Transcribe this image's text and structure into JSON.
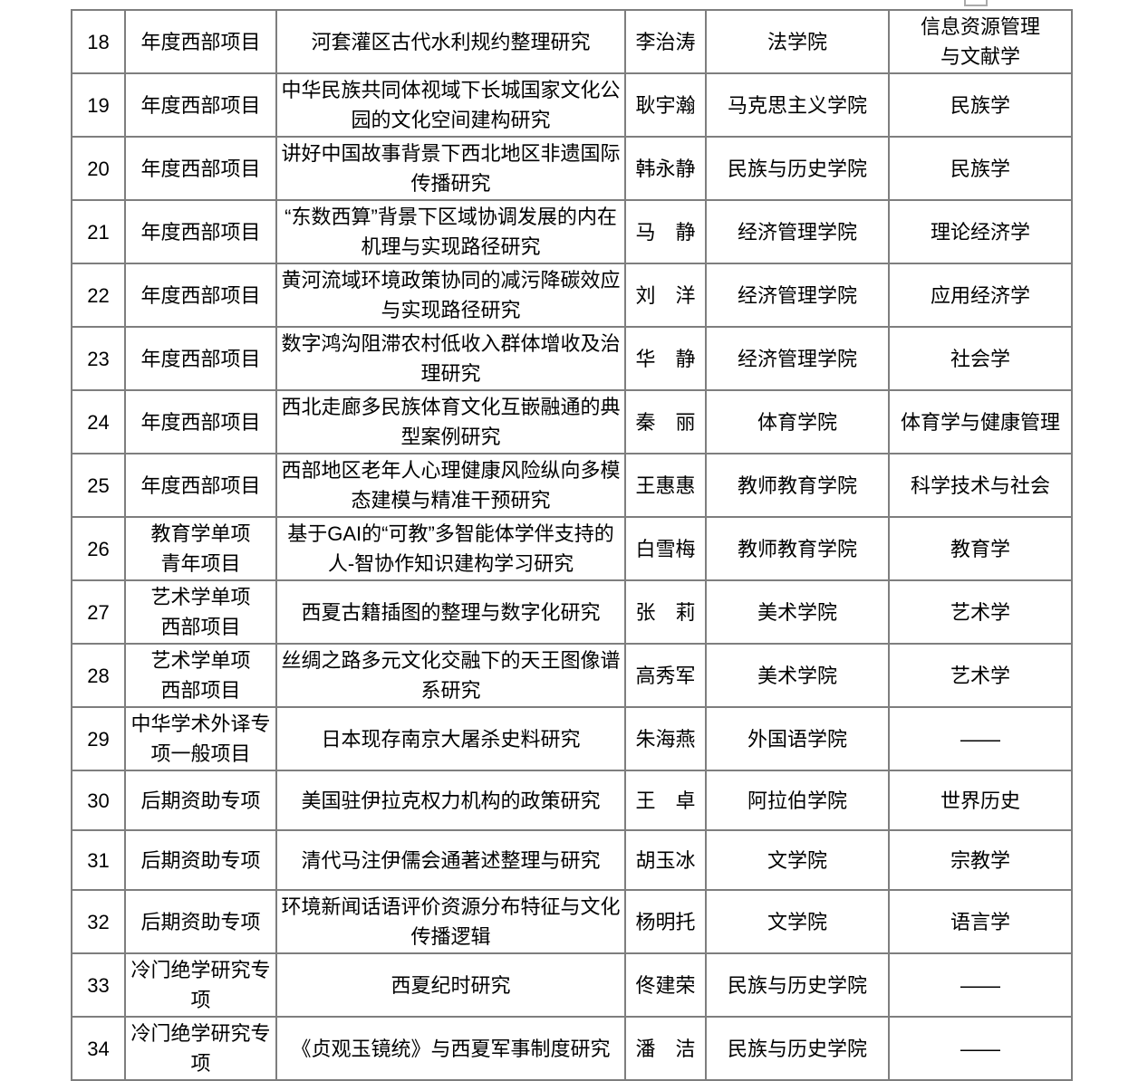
{
  "colors": {
    "table_border": "#7e7e7e",
    "text": "#000000",
    "background": "#ffffff"
  },
  "table": {
    "visible_row_range": "18-34",
    "columns": [
      "num",
      "type",
      "title",
      "name",
      "college",
      "discipline"
    ],
    "rows": [
      {
        "num": "18",
        "type": "年度西部项目",
        "title": "河套灌区古代水利规约整理研究",
        "name": "李治涛",
        "college": "法学院",
        "discipline": "信息资源管理\n与文献学"
      },
      {
        "num": "19",
        "type": "年度西部项目",
        "title": "中华民族共同体视域下长城国家文化公园的文化空间建构研究",
        "name": "耿宇瀚",
        "college": "马克思主义学院",
        "discipline": "民族学"
      },
      {
        "num": "20",
        "type": "年度西部项目",
        "title": "讲好中国故事背景下西北地区非遗国际传播研究",
        "name": "韩永静",
        "college": "民族与历史学院",
        "discipline": "民族学"
      },
      {
        "num": "21",
        "type": "年度西部项目",
        "title": "“东数西算”背景下区域协调发展的内在机理与实现路径研究",
        "name": "马　静",
        "college": "经济管理学院",
        "discipline": "理论经济学"
      },
      {
        "num": "22",
        "type": "年度西部项目",
        "title": "黄河流域环境政策协同的减污降碳效应与实现路径研究",
        "name": "刘　洋",
        "college": "经济管理学院",
        "discipline": "应用经济学"
      },
      {
        "num": "23",
        "type": "年度西部项目",
        "title": "数字鸿沟阻滞农村低收入群体增收及治理研究",
        "name": "华　静",
        "college": "经济管理学院",
        "discipline": "社会学"
      },
      {
        "num": "24",
        "type": "年度西部项目",
        "title": "西北走廊多民族体育文化互嵌融通的典型案例研究",
        "name": "秦　丽",
        "college": "体育学院",
        "discipline": "体育学与健康管理"
      },
      {
        "num": "25",
        "type": "年度西部项目",
        "title": "西部地区老年人心理健康风险纵向多模态建模与精准干预研究",
        "name": "王惠惠",
        "college": "教师教育学院",
        "discipline": "科学技术与社会"
      },
      {
        "num": "26",
        "type": "教育学单项\n青年项目",
        "title": "基于GAI的“可教”多智能体学伴支持的人-智协作知识建构学习研究",
        "name": "白雪梅",
        "college": "教师教育学院",
        "discipline": "教育学"
      },
      {
        "num": "27",
        "type": "艺术学单项\n西部项目",
        "title": "西夏古籍插图的整理与数字化研究",
        "name": "张　莉",
        "college": "美术学院",
        "discipline": "艺术学"
      },
      {
        "num": "28",
        "type": "艺术学单项\n西部项目",
        "title": "丝绸之路多元文化交融下的天王图像谱系研究",
        "name": "高秀军",
        "college": "美术学院",
        "discipline": "艺术学"
      },
      {
        "num": "29",
        "type": "中华学术外译专项一般项目",
        "title": "日本现存南京大屠杀史料研究",
        "name": "朱海燕",
        "college": "外国语学院",
        "discipline": "——"
      },
      {
        "num": "30",
        "type": "后期资助专项",
        "title": "美国驻伊拉克权力机构的政策研究",
        "name": "王　卓",
        "college": "阿拉伯学院",
        "discipline": "世界历史"
      },
      {
        "num": "31",
        "type": "后期资助专项",
        "title": "清代马注伊儒会通著述整理与研究",
        "name": "胡玉冰",
        "college": "文学院",
        "discipline": "宗教学"
      },
      {
        "num": "32",
        "type": "后期资助专项",
        "title": "环境新闻话语评价资源分布特征与文化传播逻辑",
        "name": "杨明托",
        "college": "文学院",
        "discipline": "语言学"
      },
      {
        "num": "33",
        "type": "冷门绝学研究专项",
        "title": "西夏纪时研究",
        "name": "佟建荣",
        "college": "民族与历史学院",
        "discipline": "——"
      },
      {
        "num": "34",
        "type": "冷门绝学研究专项",
        "title": "《贞观玉镜统》与西夏军事制度研究",
        "name": "潘　洁",
        "college": "民族与历史学院",
        "discipline": "——"
      }
    ]
  }
}
